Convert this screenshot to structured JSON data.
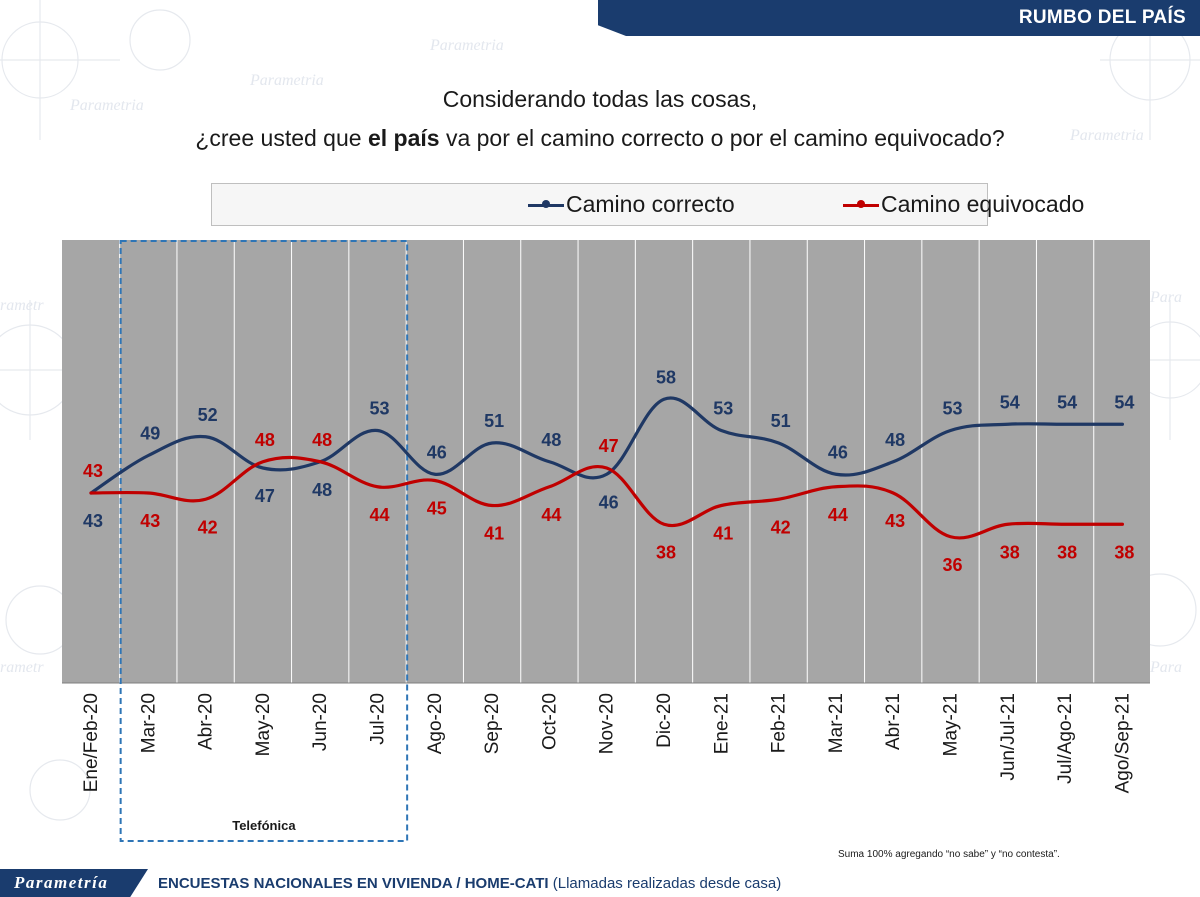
{
  "header": {
    "title": "RUMBO DEL PAÍS"
  },
  "question": {
    "line1": "Considerando todas las cosas,",
    "line2_pre": "¿cree usted que ",
    "line2_bold": "el país",
    "line2_post": " va por el camino correcto o por el camino equivocado?"
  },
  "colors": {
    "correcto": "#1f3864",
    "equivocado": "#c00000",
    "plot_bg": "#a6a6a6",
    "brand": "#1a3c6e",
    "highlight_box": "#2e75b6"
  },
  "chart_data": {
    "type": "line",
    "categories": [
      "Ene/Feb-20",
      "Mar-20",
      "Abr-20",
      "May-20",
      "Jun-20",
      "Jul-20",
      "Ago-20",
      "Sep-20",
      "Oct-20",
      "Nov-20",
      "Dic-20",
      "Ene-21",
      "Feb-21",
      "Mar-21",
      "Abr-21",
      "May-21",
      "Jun/Jul-21",
      "Jul/Ago-21",
      "Ago/Sep-21"
    ],
    "series": [
      {
        "name": "Camino correcto",
        "color": "#1f3864",
        "values": [
          43,
          49,
          52,
          47,
          48,
          53,
          46,
          51,
          48,
          46,
          58,
          53,
          51,
          46,
          48,
          53,
          54,
          54,
          54
        ]
      },
      {
        "name": "Camino equivocado",
        "color": "#c00000",
        "values": [
          43,
          43,
          42,
          48,
          48,
          44,
          45,
          41,
          44,
          47,
          38,
          41,
          42,
          44,
          43,
          36,
          38,
          38,
          38
        ]
      }
    ],
    "legend": "top",
    "highlight": {
      "label": "Telefónica",
      "from": "Mar-20",
      "to": "Jul-20",
      "style": "dashed box"
    },
    "grid": "vertical lines"
  },
  "note": "Suma 100% agregando “no sabe” y “no contesta”.",
  "footer": {
    "logo": "Parametría",
    "bold_text": "ENCUESTAS NACIONALES EN VIVIENDA / HOME-CATI",
    "normal_text": " (Llamadas realizadas desde casa)"
  }
}
